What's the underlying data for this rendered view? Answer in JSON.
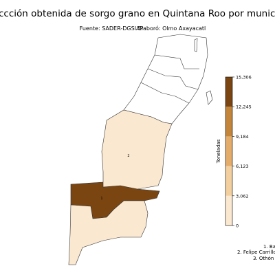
{
  "title": "ccción obtenida de sorgo grano en Quintana Roo por municipio (",
  "source": "Fuente: SADER-DGSIAP",
  "author": "Elaboró: Olmo Axayacatl",
  "colorbar": {
    "label": "Toneladas",
    "ticks": [
      0,
      {
        "value": 3062,
        "label": "3,062"
      },
      {
        "value": 6123,
        "label": "6,123"
      },
      {
        "value": 9184,
        "label": "9,184"
      },
      {
        "value": 12245,
        "label": "12,245"
      },
      {
        "value": 15306,
        "label": "15,306"
      }
    ],
    "colors": [
      "#fbe8d0",
      "#f3cf9f",
      "#e4ac69",
      "#c2853a",
      "#7a4511"
    ]
  },
  "municipalities": [
    {
      "label": "1",
      "value": 15306
    },
    {
      "label": "2",
      "value": 1500
    },
    {
      "value": 900
    }
  ],
  "legend": [
    "1. Ba",
    "2. Felipe Carrillo",
    "3. Othón F"
  ]
}
